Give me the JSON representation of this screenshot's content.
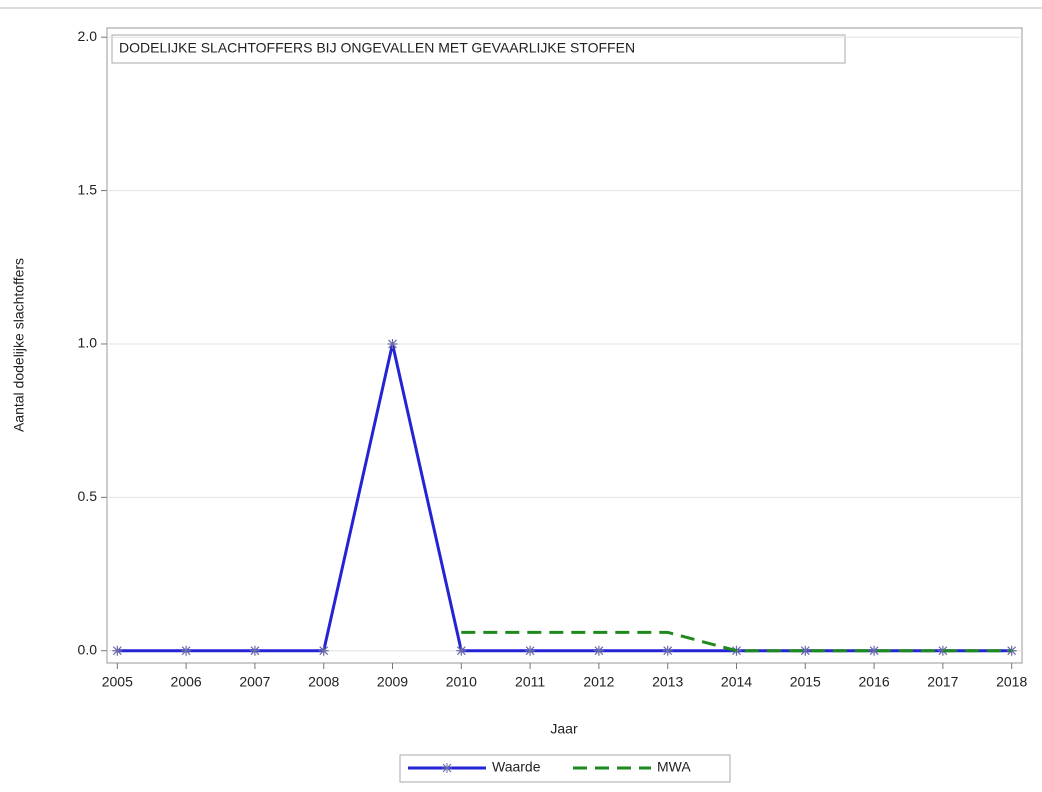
{
  "chart_data": {
    "type": "line",
    "title": "DODELIJKE SLACHTOFFERS BIJ ONGEVALLEN MET GEVAARLIJKE STOFFEN",
    "x_label": "Jaar",
    "y_label": "Aantal dodelijke slachtoffers",
    "x": [
      2005,
      2006,
      2007,
      2008,
      2009,
      2010,
      2011,
      2012,
      2013,
      2014,
      2015,
      2016,
      2017,
      2018
    ],
    "series": [
      {
        "name": "Waarde",
        "color": "#2424d4",
        "values": [
          0,
          0,
          0,
          0,
          1,
          0,
          0,
          0,
          0,
          0,
          0,
          0,
          0,
          0
        ]
      },
      {
        "name": "MWA",
        "color": "#1e8a1e",
        "dashed": true,
        "values": [
          null,
          null,
          null,
          null,
          null,
          0.06,
          0.06,
          0.06,
          0.06,
          0,
          0,
          0,
          0,
          0
        ]
      }
    ],
    "xlim": [
      2004.85,
      2018.15
    ],
    "xticks": [
      2005,
      2006,
      2007,
      2008,
      2009,
      2010,
      2011,
      2012,
      2013,
      2014,
      2015,
      2016,
      2017,
      2018
    ],
    "ylim": [
      -0.04,
      2.03
    ],
    "yticks": [
      {
        "value": 0,
        "label": "0.0"
      },
      0.5,
      {
        "value": 1,
        "label": "1.0"
      },
      1.5,
      {
        "value": 2,
        "label": "2.0"
      }
    ],
    "grid": true,
    "legend": "bottom"
  }
}
